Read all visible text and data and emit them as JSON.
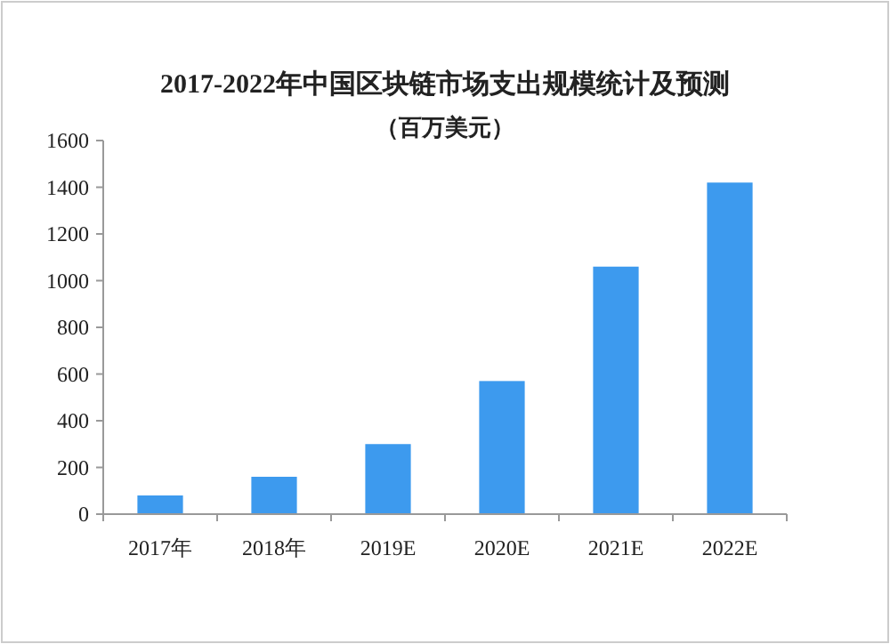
{
  "chart_data": {
    "type": "bar",
    "title": "2017-2022年中国区块链市场支出规模统计及预测",
    "subtitle": "（百万美元）",
    "categories": [
      "2017年",
      "2018年",
      "2019E",
      "2020E",
      "2021E",
      "2022E"
    ],
    "values": [
      80,
      160,
      300,
      570,
      1060,
      1420
    ],
    "color": "#3d9aee",
    "ylim": [
      0,
      1600
    ],
    "yticks": [
      0,
      200,
      400,
      600,
      800,
      1000,
      1200,
      1400,
      1600
    ],
    "grid": false
  }
}
